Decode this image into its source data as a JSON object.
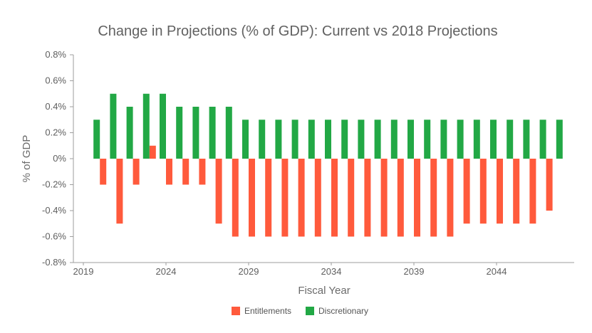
{
  "chart_data": {
    "type": "bar",
    "title": "Change in Projections (% of GDP): Current vs 2018 Projections",
    "xlabel": "Fiscal Year",
    "ylabel": "% of GDP",
    "ylim": [
      -0.8,
      0.8
    ],
    "yticks": [
      0.8,
      0.6,
      0.4,
      0.2,
      0,
      -0.2,
      -0.4,
      -0.6,
      -0.8
    ],
    "ytick_labels": [
      "0.8%",
      "0.6%",
      "0.4%",
      "0.2%",
      "0%",
      "-0.2%",
      "-0.4%",
      "-0.6%",
      "-0.8%"
    ],
    "xtick_labels": [
      {
        "year": 2019,
        "label": "2019"
      },
      {
        "year": 2024,
        "label": "2024"
      },
      {
        "year": 2029,
        "label": "2029"
      },
      {
        "year": 2034,
        "label": "2034"
      },
      {
        "year": 2039,
        "label": "2039"
      },
      {
        "year": 2044,
        "label": "2044"
      }
    ],
    "x": [
      2020,
      2021,
      2022,
      2023,
      2024,
      2025,
      2026,
      2027,
      2028,
      2029,
      2030,
      2031,
      2032,
      2033,
      2034,
      2035,
      2036,
      2037,
      2038,
      2039,
      2040,
      2041,
      2042,
      2043,
      2044,
      2045,
      2046,
      2047,
      2048
    ],
    "series": [
      {
        "name": "Entitlements",
        "color": "#ff5a3c",
        "values": [
          -0.2,
          -0.5,
          -0.2,
          0.1,
          -0.2,
          -0.2,
          -0.2,
          -0.5,
          -0.6,
          -0.6,
          -0.6,
          -0.6,
          -0.6,
          -0.6,
          -0.6,
          -0.6,
          -0.6,
          -0.6,
          -0.6,
          -0.6,
          -0.6,
          -0.6,
          -0.5,
          -0.5,
          -0.5,
          -0.5,
          -0.5,
          -0.4,
          null
        ]
      },
      {
        "name": "Discretionary",
        "color": "#22a845",
        "values": [
          0.3,
          0.5,
          0.4,
          0.5,
          0.5,
          0.4,
          0.4,
          0.4,
          0.4,
          0.3,
          0.3,
          0.3,
          0.3,
          0.3,
          0.3,
          0.3,
          0.3,
          0.3,
          0.3,
          0.3,
          0.3,
          0.3,
          0.3,
          0.3,
          0.3,
          0.3,
          0.3,
          0.3,
          0.3
        ]
      }
    ],
    "grid": false,
    "legend_position": "bottom"
  }
}
